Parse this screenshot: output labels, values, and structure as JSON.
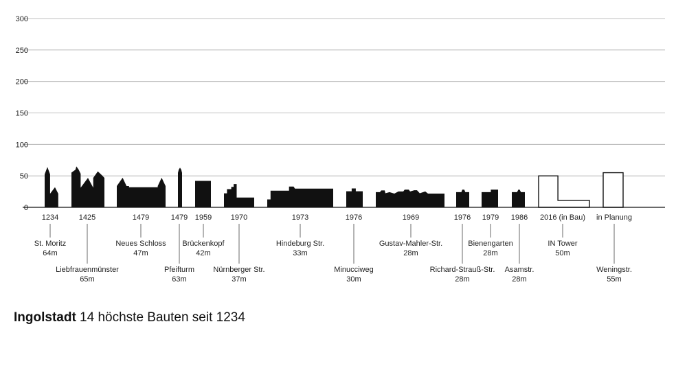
{
  "chart_data": {
    "type": "bar",
    "title_bold": "Ingolstadt",
    "title_rest": " 14 höchste Bauten seit 1234",
    "ylim": [
      0,
      300
    ],
    "yticks": [
      0,
      50,
      100,
      150,
      200,
      250,
      300
    ],
    "grid": true,
    "unit": "m",
    "categories": [
      "St. Moritz",
      "Liebfrauenmünster",
      "Neues Schloss",
      "Pfeifturm",
      "Brückenkopf",
      "Nürnberger Str.",
      "Hindeburg Str.",
      "Minucciweg",
      "Gustav-Mahler-Str.",
      "Richard-Strauß-Str.",
      "Bienengarten",
      "Asamstr.",
      "IN Tower",
      "Weningstr."
    ],
    "years": [
      "1234",
      "1425",
      "1479",
      "1479",
      "1959",
      "1970",
      "1973",
      "1976",
      "1969",
      "1976",
      "1979",
      "1986",
      "2016 (in Bau)",
      "in Planung"
    ],
    "values": [
      64,
      65,
      47,
      63,
      42,
      37,
      33,
      30,
      28,
      28,
      28,
      28,
      50,
      55
    ],
    "height_labels": [
      "64m",
      "65m",
      "47m",
      "63m",
      "42m",
      "37m",
      "33m",
      "30m",
      "28m",
      "28m",
      "28m",
      "28m",
      "50m",
      "55m"
    ],
    "label_row": [
      1,
      2,
      1,
      2,
      1,
      2,
      1,
      2,
      1,
      2,
      1,
      2,
      1,
      2
    ],
    "style": [
      "solid",
      "solid",
      "solid",
      "solid",
      "solid",
      "solid",
      "solid",
      "solid",
      "solid",
      "solid",
      "solid",
      "solid",
      "outline",
      "outline"
    ],
    "colors": {
      "building": "#111111",
      "grid": "#aaaaaa",
      "text": "#222222"
    }
  }
}
